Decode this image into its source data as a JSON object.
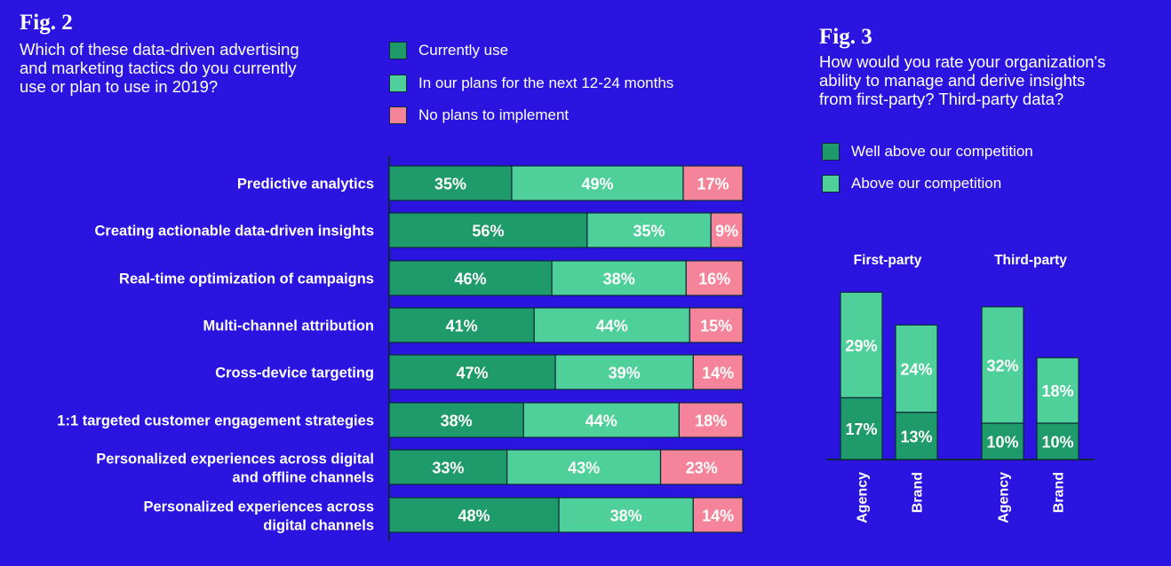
{
  "colors": {
    "background": "#2b14e0",
    "currently_use": "#1f9a6a",
    "in_plans": "#4fd09a",
    "no_plans": "#f5849a",
    "well_above": "#1f9a6a",
    "above": "#4fd09a"
  },
  "fig2": {
    "label": "Fig. 2",
    "question_lines": [
      "Which of these data-driven advertising",
      "and marketing tactics do you currently",
      "use or plan to use in 2019?"
    ],
    "legend": [
      "Currently use",
      "In our plans for the next 12-24 months",
      "No plans to implement"
    ]
  },
  "fig3": {
    "label": "Fig. 3",
    "question_lines": [
      "How would you rate your organization's",
      "ability to manage and derive insights",
      "from first-party? Third-party data?"
    ],
    "legend": [
      "Well above our competition",
      "Above our competition"
    ]
  },
  "chart_data": [
    {
      "type": "bar",
      "orientation": "horizontal",
      "stacked": true,
      "categories": [
        [
          "Predictive analytics"
        ],
        [
          "Creating actionable data-driven insights"
        ],
        [
          "Real-time optimization of campaigns"
        ],
        [
          "Multi-channel attribution"
        ],
        [
          "Cross-device targeting"
        ],
        [
          "1:1 targeted customer engagement strategies"
        ],
        [
          "Personalized experiences across digital",
          "and offline channels"
        ],
        [
          "Personalized experiences across",
          "digital channels"
        ]
      ],
      "series": [
        {
          "name": "Currently use",
          "values": [
            35,
            56,
            46,
            41,
            47,
            38,
            33,
            48
          ]
        },
        {
          "name": "In our plans for the next 12-24 months",
          "values": [
            49,
            35,
            38,
            44,
            39,
            44,
            43,
            38
          ]
        },
        {
          "name": "No plans to implement",
          "values": [
            17,
            9,
            16,
            15,
            14,
            18,
            23,
            14
          ]
        }
      ],
      "value_suffix": "%",
      "legend_position": "top"
    },
    {
      "type": "bar",
      "orientation": "vertical",
      "stacked": true,
      "groups": [
        "First-party",
        "Third-party"
      ],
      "categories": [
        "Agency",
        "Brand",
        "Agency",
        "Brand"
      ],
      "series": [
        {
          "name": "Well above our competition",
          "values": [
            17,
            13,
            10,
            10
          ]
        },
        {
          "name": "Above our competition",
          "values": [
            29,
            24,
            32,
            18
          ]
        }
      ],
      "value_suffix": "%",
      "legend_position": "top"
    }
  ]
}
